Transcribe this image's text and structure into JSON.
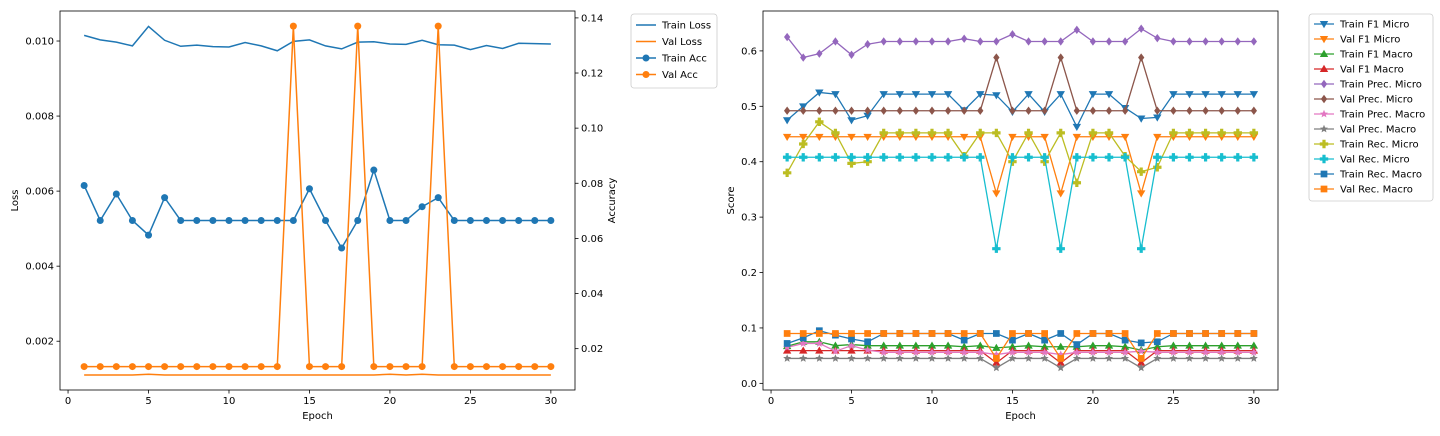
{
  "chart_data": [
    {
      "type": "line",
      "xlabel": "Epoch",
      "ylabel": "Loss",
      "ylabel_right": "Accuracy",
      "xlim": [
        -0.5,
        31.5
      ],
      "ylim": [
        0.0007,
        0.0108
      ],
      "ylim_right": [
        0.005,
        0.1425
      ],
      "xticks": [
        "0",
        "5",
        "10",
        "15",
        "20",
        "25",
        "30"
      ],
      "yticks": [
        "0.002",
        "0.004",
        "0.006",
        "0.008",
        "0.010"
      ],
      "yticks_right": [
        "0.02",
        "0.04",
        "0.06",
        "0.08",
        "0.10",
        "0.12",
        "0.14"
      ],
      "legend_position": "outside-top-right",
      "x": [
        1,
        2,
        3,
        4,
        5,
        6,
        7,
        8,
        9,
        10,
        11,
        12,
        13,
        14,
        15,
        16,
        17,
        18,
        19,
        20,
        21,
        22,
        23,
        24,
        25,
        26,
        27,
        28,
        29,
        30
      ],
      "series": [
        {
          "name": "Train Loss",
          "axis": "left",
          "color": "#1f77b4",
          "marker": "none",
          "values": [
            0.01015,
            0.01003,
            0.00997,
            0.00987,
            0.01039,
            0.01002,
            0.00986,
            0.00989,
            0.00985,
            0.00984,
            0.00996,
            0.00987,
            0.00974,
            0.00999,
            0.01003,
            0.00987,
            0.00979,
            0.00997,
            0.00998,
            0.00992,
            0.00991,
            0.01002,
            0.0099,
            0.00989,
            0.00977,
            0.00988,
            0.0098,
            0.00994,
            0.00993,
            0.00992
          ]
        },
        {
          "name": "Val Loss",
          "axis": "left",
          "color": "#ff7f0e",
          "marker": "none",
          "values": [
            0.0011,
            0.0011,
            0.0011,
            0.0011,
            0.00112,
            0.0011,
            0.0011,
            0.0011,
            0.0011,
            0.0011,
            0.0011,
            0.0011,
            0.0011,
            0.0011,
            0.0011,
            0.0011,
            0.0011,
            0.0011,
            0.0011,
            0.00112,
            0.0011,
            0.00112,
            0.0011,
            0.0011,
            0.0011,
            0.0011,
            0.0011,
            0.0011,
            0.0011,
            0.0011
          ]
        },
        {
          "name": "Train Acc",
          "axis": "right",
          "color": "#1f77b4",
          "marker": "circle",
          "values": [
            0.0792,
            0.0665,
            0.0761,
            0.0665,
            0.0612,
            0.0748,
            0.0665,
            0.0665,
            0.0665,
            0.0665,
            0.0665,
            0.0665,
            0.0665,
            0.0665,
            0.078,
            0.0665,
            0.0565,
            0.0665,
            0.0848,
            0.0665,
            0.0665,
            0.0715,
            0.0748,
            0.0665,
            0.0665,
            0.0665,
            0.0665,
            0.0665,
            0.0665,
            0.0665
          ]
        },
        {
          "name": "Val Acc",
          "axis": "right",
          "color": "#ff7f0e",
          "marker": "circle",
          "values": [
            0.0135,
            0.0135,
            0.0135,
            0.0135,
            0.0135,
            0.0135,
            0.0135,
            0.0135,
            0.0135,
            0.0135,
            0.0135,
            0.0135,
            0.0135,
            0.137,
            0.0135,
            0.0135,
            0.0135,
            0.137,
            0.0135,
            0.0135,
            0.0135,
            0.0135,
            0.137,
            0.0135,
            0.0135,
            0.0135,
            0.0135,
            0.0135,
            0.0135,
            0.0135
          ]
        }
      ]
    },
    {
      "type": "line",
      "xlabel": "Epoch",
      "ylabel": "Score",
      "xlim": [
        -0.5,
        31.5
      ],
      "ylim": [
        -0.012,
        0.672
      ],
      "xticks": [
        "0",
        "5",
        "10",
        "15",
        "20",
        "25",
        "30"
      ],
      "yticks": [
        "0.0",
        "0.1",
        "0.2",
        "0.3",
        "0.4",
        "0.5",
        "0.6"
      ],
      "legend_position": "outside-top-right",
      "x": [
        1,
        2,
        3,
        4,
        5,
        6,
        7,
        8,
        9,
        10,
        11,
        12,
        13,
        14,
        15,
        16,
        17,
        18,
        19,
        20,
        21,
        22,
        23,
        24,
        25,
        26,
        27,
        28,
        29,
        30
      ],
      "series": [
        {
          "name": "Train F1 Micro",
          "color": "#1f77b4",
          "marker": "tri-down",
          "values": [
            0.475,
            0.5,
            0.525,
            0.522,
            0.475,
            0.483,
            0.522,
            0.522,
            0.522,
            0.522,
            0.522,
            0.493,
            0.522,
            0.52,
            0.49,
            0.522,
            0.49,
            0.522,
            0.463,
            0.522,
            0.522,
            0.497,
            0.478,
            0.48,
            0.522,
            0.522,
            0.522,
            0.522,
            0.522,
            0.522
          ]
        },
        {
          "name": "Val F1 Micro",
          "color": "#ff7f0e",
          "marker": "tri-down",
          "values": [
            0.445,
            0.445,
            0.445,
            0.445,
            0.445,
            0.445,
            0.445,
            0.445,
            0.445,
            0.445,
            0.445,
            0.445,
            0.445,
            0.343,
            0.445,
            0.445,
            0.445,
            0.343,
            0.445,
            0.445,
            0.445,
            0.445,
            0.343,
            0.445,
            0.445,
            0.445,
            0.445,
            0.445,
            0.445,
            0.445
          ]
        },
        {
          "name": "Train F1 Macro",
          "color": "#2ca02c",
          "marker": "tri-up",
          "values": [
            0.067,
            0.075,
            0.075,
            0.068,
            0.07,
            0.068,
            0.068,
            0.068,
            0.068,
            0.068,
            0.068,
            0.066,
            0.068,
            0.064,
            0.066,
            0.068,
            0.066,
            0.066,
            0.066,
            0.068,
            0.068,
            0.066,
            0.06,
            0.066,
            0.068,
            0.068,
            0.068,
            0.068,
            0.068,
            0.068
          ]
        },
        {
          "name": "Val F1 Macro",
          "color": "#d62728",
          "marker": "tri-up",
          "values": [
            0.059,
            0.059,
            0.059,
            0.059,
            0.059,
            0.059,
            0.059,
            0.059,
            0.059,
            0.059,
            0.059,
            0.059,
            0.059,
            0.037,
            0.059,
            0.059,
            0.059,
            0.037,
            0.059,
            0.059,
            0.059,
            0.059,
            0.037,
            0.059,
            0.059,
            0.059,
            0.059,
            0.059,
            0.059,
            0.059
          ]
        },
        {
          "name": "Train Prec. Micro",
          "color": "#9467bd",
          "marker": "diamond",
          "values": [
            0.625,
            0.588,
            0.595,
            0.617,
            0.593,
            0.612,
            0.617,
            0.617,
            0.617,
            0.617,
            0.617,
            0.622,
            0.617,
            0.617,
            0.63,
            0.617,
            0.617,
            0.617,
            0.638,
            0.617,
            0.617,
            0.617,
            0.64,
            0.623,
            0.617,
            0.617,
            0.617,
            0.617,
            0.617,
            0.617
          ]
        },
        {
          "name": "Val Prec. Micro",
          "color": "#8c564b",
          "marker": "diamond",
          "values": [
            0.492,
            0.492,
            0.492,
            0.492,
            0.492,
            0.492,
            0.492,
            0.492,
            0.492,
            0.492,
            0.492,
            0.492,
            0.492,
            0.588,
            0.492,
            0.492,
            0.492,
            0.588,
            0.492,
            0.492,
            0.492,
            0.492,
            0.588,
            0.492,
            0.492,
            0.492,
            0.492,
            0.492,
            0.492,
            0.492
          ]
        },
        {
          "name": "Train Prec. Macro",
          "color": "#e377c2",
          "marker": "star",
          "values": [
            0.065,
            0.072,
            0.072,
            0.058,
            0.068,
            0.06,
            0.056,
            0.056,
            0.056,
            0.056,
            0.056,
            0.056,
            0.056,
            0.052,
            0.056,
            0.056,
            0.056,
            0.052,
            0.056,
            0.056,
            0.056,
            0.056,
            0.058,
            0.056,
            0.056,
            0.056,
            0.056,
            0.056,
            0.056,
            0.056
          ]
        },
        {
          "name": "Val Prec. Macro",
          "color": "#7f7f7f",
          "marker": "star",
          "values": [
            0.045,
            0.045,
            0.045,
            0.045,
            0.045,
            0.045,
            0.045,
            0.045,
            0.045,
            0.045,
            0.045,
            0.045,
            0.045,
            0.028,
            0.045,
            0.045,
            0.045,
            0.028,
            0.045,
            0.045,
            0.045,
            0.045,
            0.028,
            0.045,
            0.045,
            0.045,
            0.045,
            0.045,
            0.045,
            0.045
          ]
        },
        {
          "name": "Train Rec. Micro",
          "color": "#bcbd22",
          "marker": "plus",
          "values": [
            0.38,
            0.432,
            0.472,
            0.452,
            0.397,
            0.4,
            0.452,
            0.452,
            0.452,
            0.452,
            0.452,
            0.41,
            0.452,
            0.452,
            0.4,
            0.452,
            0.4,
            0.452,
            0.362,
            0.452,
            0.452,
            0.41,
            0.382,
            0.39,
            0.452,
            0.452,
            0.452,
            0.452,
            0.452,
            0.452
          ]
        },
        {
          "name": "Val Rec. Micro",
          "color": "#17becf",
          "marker": "plus",
          "values": [
            0.408,
            0.408,
            0.408,
            0.408,
            0.408,
            0.408,
            0.408,
            0.408,
            0.408,
            0.408,
            0.408,
            0.408,
            0.408,
            0.243,
            0.408,
            0.408,
            0.408,
            0.243,
            0.408,
            0.408,
            0.408,
            0.408,
            0.243,
            0.408,
            0.408,
            0.408,
            0.408,
            0.408,
            0.408,
            0.408
          ]
        },
        {
          "name": "Train Rec. Macro",
          "color": "#1f77b4",
          "marker": "square",
          "values": [
            0.072,
            0.082,
            0.095,
            0.087,
            0.08,
            0.075,
            0.09,
            0.09,
            0.09,
            0.09,
            0.09,
            0.078,
            0.09,
            0.09,
            0.078,
            0.09,
            0.078,
            0.09,
            0.07,
            0.09,
            0.09,
            0.078,
            0.073,
            0.075,
            0.09,
            0.09,
            0.09,
            0.09,
            0.09,
            0.09
          ]
        },
        {
          "name": "Val Rec. Macro",
          "color": "#ff7f0e",
          "marker": "square",
          "values": [
            0.09,
            0.09,
            0.09,
            0.09,
            0.09,
            0.09,
            0.09,
            0.09,
            0.09,
            0.09,
            0.09,
            0.09,
            0.09,
            0.045,
            0.09,
            0.09,
            0.09,
            0.045,
            0.09,
            0.09,
            0.09,
            0.09,
            0.045,
            0.09,
            0.09,
            0.09,
            0.09,
            0.09,
            0.09,
            0.09
          ]
        }
      ]
    }
  ]
}
